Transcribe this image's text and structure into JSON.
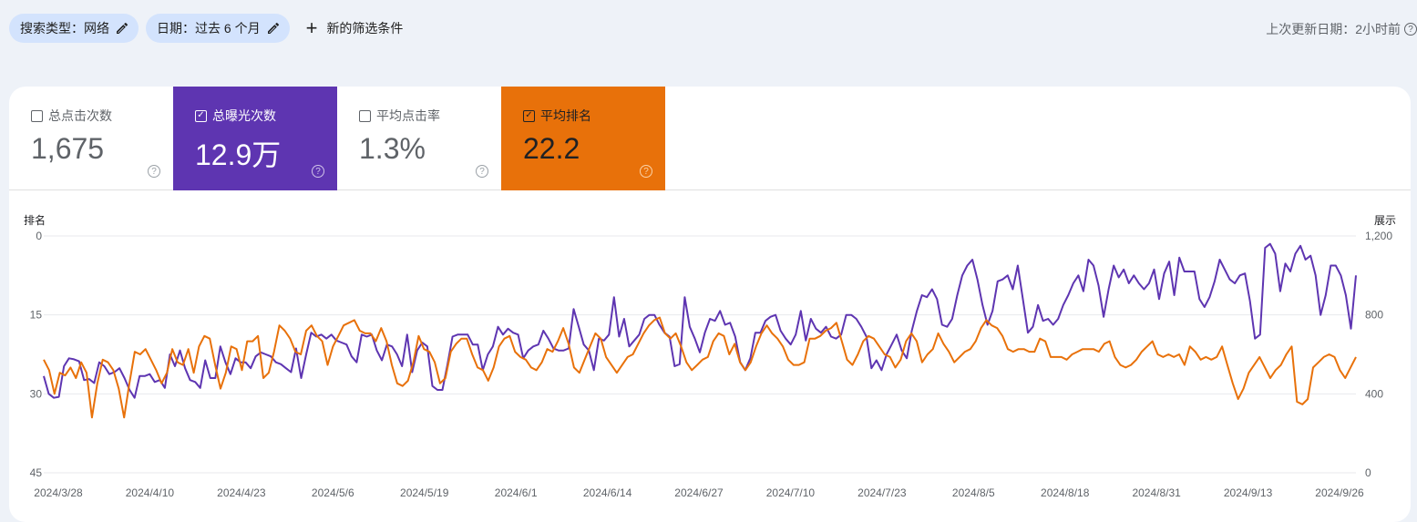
{
  "filters": {
    "search_type": "搜索类型：网络",
    "date": "日期：过去 6 个月",
    "add_label": "新的筛选条件"
  },
  "last_updated": "上次更新日期：2小时前",
  "metrics": [
    {
      "label": "总点击次数",
      "value": "1,675",
      "checked": false
    },
    {
      "label": "总曝光次数",
      "value": "12.9万",
      "checked": true
    },
    {
      "label": "平均点击率",
      "value": "1.3%",
      "checked": false
    },
    {
      "label": "平均排名",
      "value": "22.2",
      "checked": true
    }
  ],
  "colors": {
    "impressions": "#5e35b1",
    "position": "#e8710a"
  },
  "chart_data": {
    "type": "line",
    "left_axis": {
      "label": "排名",
      "ticks": [
        "0",
        "15",
        "30",
        "45"
      ],
      "range": [
        0,
        45
      ],
      "inverted": true
    },
    "right_axis": {
      "label": "展示",
      "ticks": [
        "1,200",
        "800",
        "400",
        "0"
      ],
      "range": [
        0,
        1200
      ]
    },
    "x_ticks": [
      "2024/3/28",
      "2024/4/10",
      "2024/4/23",
      "2024/5/6",
      "2024/5/19",
      "2024/6/1",
      "2024/6/14",
      "2024/6/27",
      "2024/7/10",
      "2024/7/23",
      "2024/8/5",
      "2024/8/18",
      "2024/8/31",
      "2024/9/13",
      "2024/9/26"
    ],
    "series": [
      {
        "name": "总曝光次数",
        "axis": "right",
        "values": [
          490,
          400,
          380,
          385,
          540,
          580,
          575,
          565,
          470,
          475,
          455,
          560,
          540,
          500,
          510,
          530,
          480,
          420,
          380,
          490,
          490,
          500,
          460,
          470,
          430,
          600,
          540,
          620,
          530,
          470,
          460,
          430,
          570,
          480,
          480,
          640,
          560,
          500,
          580,
          560,
          560,
          530,
          590,
          610,
          600,
          590,
          560,
          550,
          530,
          510,
          630,
          480,
          600,
          710,
          690,
          700,
          680,
          700,
          670,
          660,
          650,
          590,
          560,
          700,
          690,
          700,
          620,
          570,
          650,
          640,
          600,
          540,
          700,
          510,
          620,
          660,
          640,
          440,
          420,
          420,
          550,
          690,
          700,
          700,
          700,
          650,
          650,
          520,
          600,
          640,
          740,
          700,
          730,
          710,
          700,
          580,
          620,
          640,
          650,
          720,
          680,
          630,
          620,
          620,
          630,
          830,
          740,
          650,
          620,
          520,
          680,
          670,
          700,
          890,
          690,
          780,
          640,
          670,
          700,
          780,
          800,
          800,
          750,
          710,
          690,
          540,
          550,
          890,
          740,
          680,
          610,
          710,
          780,
          770,
          820,
          750,
          760,
          690,
          560,
          520,
          580,
          710,
          710,
          770,
          790,
          800,
          720,
          680,
          650,
          700,
          820,
          670,
          780,
          730,
          710,
          740,
          690,
          680,
          700,
          800,
          800,
          780,
          740,
          690,
          530,
          570,
          520,
          600,
          650,
          700,
          620,
          580,
          720,
          820,
          900,
          890,
          930,
          880,
          750,
          740,
          780,
          900,
          1000,
          1050,
          1080,
          980,
          850,
          750,
          820,
          970,
          980,
          1000,
          930,
          1050,
          880,
          710,
          740,
          850,
          770,
          780,
          750,
          780,
          850,
          900,
          960,
          1000,
          920,
          1080,
          1050,
          950,
          790,
          930,
          1050,
          990,
          1030,
          960,
          1000,
          960,
          930,
          960,
          1030,
          880,
          1010,
          1070,
          900,
          1090,
          1020,
          1020,
          1020,
          880,
          840,
          890,
          970,
          1080,
          1030,
          980,
          960,
          1000,
          1010,
          870,
          680,
          700,
          1140,
          1160,
          1110,
          920,
          1060,
          1020,
          1110,
          1150,
          1080,
          1100,
          1000,
          800,
          900,
          1050,
          1050,
          1000,
          900,
          730,
          1000
        ]
      },
      {
        "name": "平均排名",
        "axis": "left",
        "values": [
          23.5,
          25.5,
          30,
          26,
          26.5,
          25,
          27,
          24,
          26,
          34.5,
          28,
          23.5,
          24,
          25.5,
          29,
          34.5,
          28,
          22,
          22.5,
          21.5,
          23.5,
          25.5,
          28,
          26,
          21.5,
          24,
          24.5,
          21.5,
          26,
          21,
          19,
          19.5,
          24.5,
          29,
          26,
          21,
          21.5,
          25.5,
          20,
          20,
          19,
          27,
          26,
          22,
          17,
          18,
          19.5,
          22,
          22.5,
          18,
          17,
          19,
          20,
          24.5,
          21,
          19,
          17,
          16.5,
          16,
          18,
          18.5,
          18.5,
          20,
          17.5,
          20,
          24.5,
          28,
          28.5,
          27.5,
          24,
          19,
          21.5,
          22,
          24,
          28,
          27,
          22,
          20.5,
          19.5,
          19.5,
          22.5,
          25,
          25.5,
          27.5,
          25,
          21,
          19.5,
          19,
          22,
          23,
          23.5,
          25,
          25.5,
          24,
          21.5,
          22,
          20,
          17.5,
          20.5,
          25,
          26,
          23.5,
          21,
          18.5,
          19.5,
          23,
          24.5,
          26,
          24.5,
          23,
          22.5,
          20.5,
          18.5,
          17,
          16,
          15.5,
          18.5,
          19.5,
          18.5,
          21,
          24,
          25.5,
          24.5,
          23.5,
          23,
          20,
          18.5,
          19,
          22.5,
          20.5,
          24,
          25.5,
          24,
          21,
          18.5,
          17,
          18.5,
          19.5,
          21,
          23.5,
          24.5,
          24.5,
          24,
          19.5,
          19.5,
          19,
          18,
          17.5,
          16.5,
          20,
          23.5,
          24.5,
          22.5,
          20,
          19,
          19.5,
          21,
          22.5,
          23,
          25,
          23.5,
          20,
          18.5,
          20,
          24,
          22.5,
          21.5,
          18.5,
          20.5,
          22,
          24,
          23,
          22,
          21.5,
          20,
          17.5,
          16,
          17,
          17.5,
          19,
          21.5,
          22,
          21.5,
          21.5,
          22,
          22,
          19.5,
          20,
          23,
          23,
          23,
          23.5,
          22.5,
          22,
          21.5,
          21.5,
          21.5,
          22,
          20.5,
          20,
          23,
          24.5,
          25,
          24.5,
          23.5,
          22,
          21,
          20,
          22.5,
          23,
          22.5,
          23,
          22.5,
          24.5,
          21,
          22,
          23.5,
          23,
          23.5,
          23,
          21,
          24.5,
          28,
          31,
          29,
          26,
          24.5,
          23,
          25,
          27,
          25.5,
          24.5,
          22.5,
          21,
          31.5,
          32,
          31,
          25,
          24,
          23,
          22.5,
          23,
          25.5,
          27,
          25,
          23
        ]
      }
    ]
  }
}
